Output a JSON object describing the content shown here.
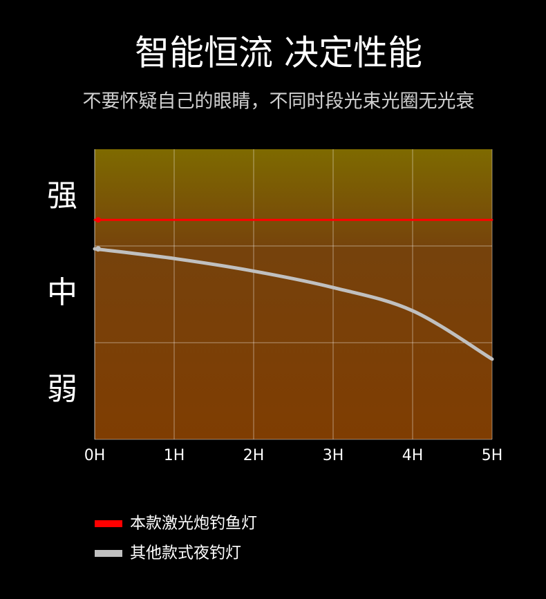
{
  "chart_data": {
    "type": "line",
    "title": "智能恒流 决定性能",
    "subtitle": "不要怀疑自己的眼睛，不同时段光束光圈无光衰",
    "categories": [
      "0H",
      "1H",
      "2H",
      "3H",
      "4H",
      "5H"
    ],
    "series": [
      {
        "name": "本款激光炮钓鱼灯",
        "color": "#ff0000",
        "values": [
          2.27,
          2.27,
          2.27,
          2.27,
          2.27,
          2.27
        ]
      },
      {
        "name": "其他款式夜钓灯",
        "color": "#c0c0c0",
        "values": [
          1.97,
          1.87,
          1.74,
          1.57,
          1.33,
          0.83
        ]
      }
    ],
    "ylim": [
      0,
      3
    ],
    "yticks": [
      {
        "value": 2.5,
        "label": "强"
      },
      {
        "value": 1.5,
        "label": "中"
      },
      {
        "value": 0.5,
        "label": "弱"
      }
    ],
    "ygrid": [
      1,
      2
    ],
    "grid": true
  }
}
